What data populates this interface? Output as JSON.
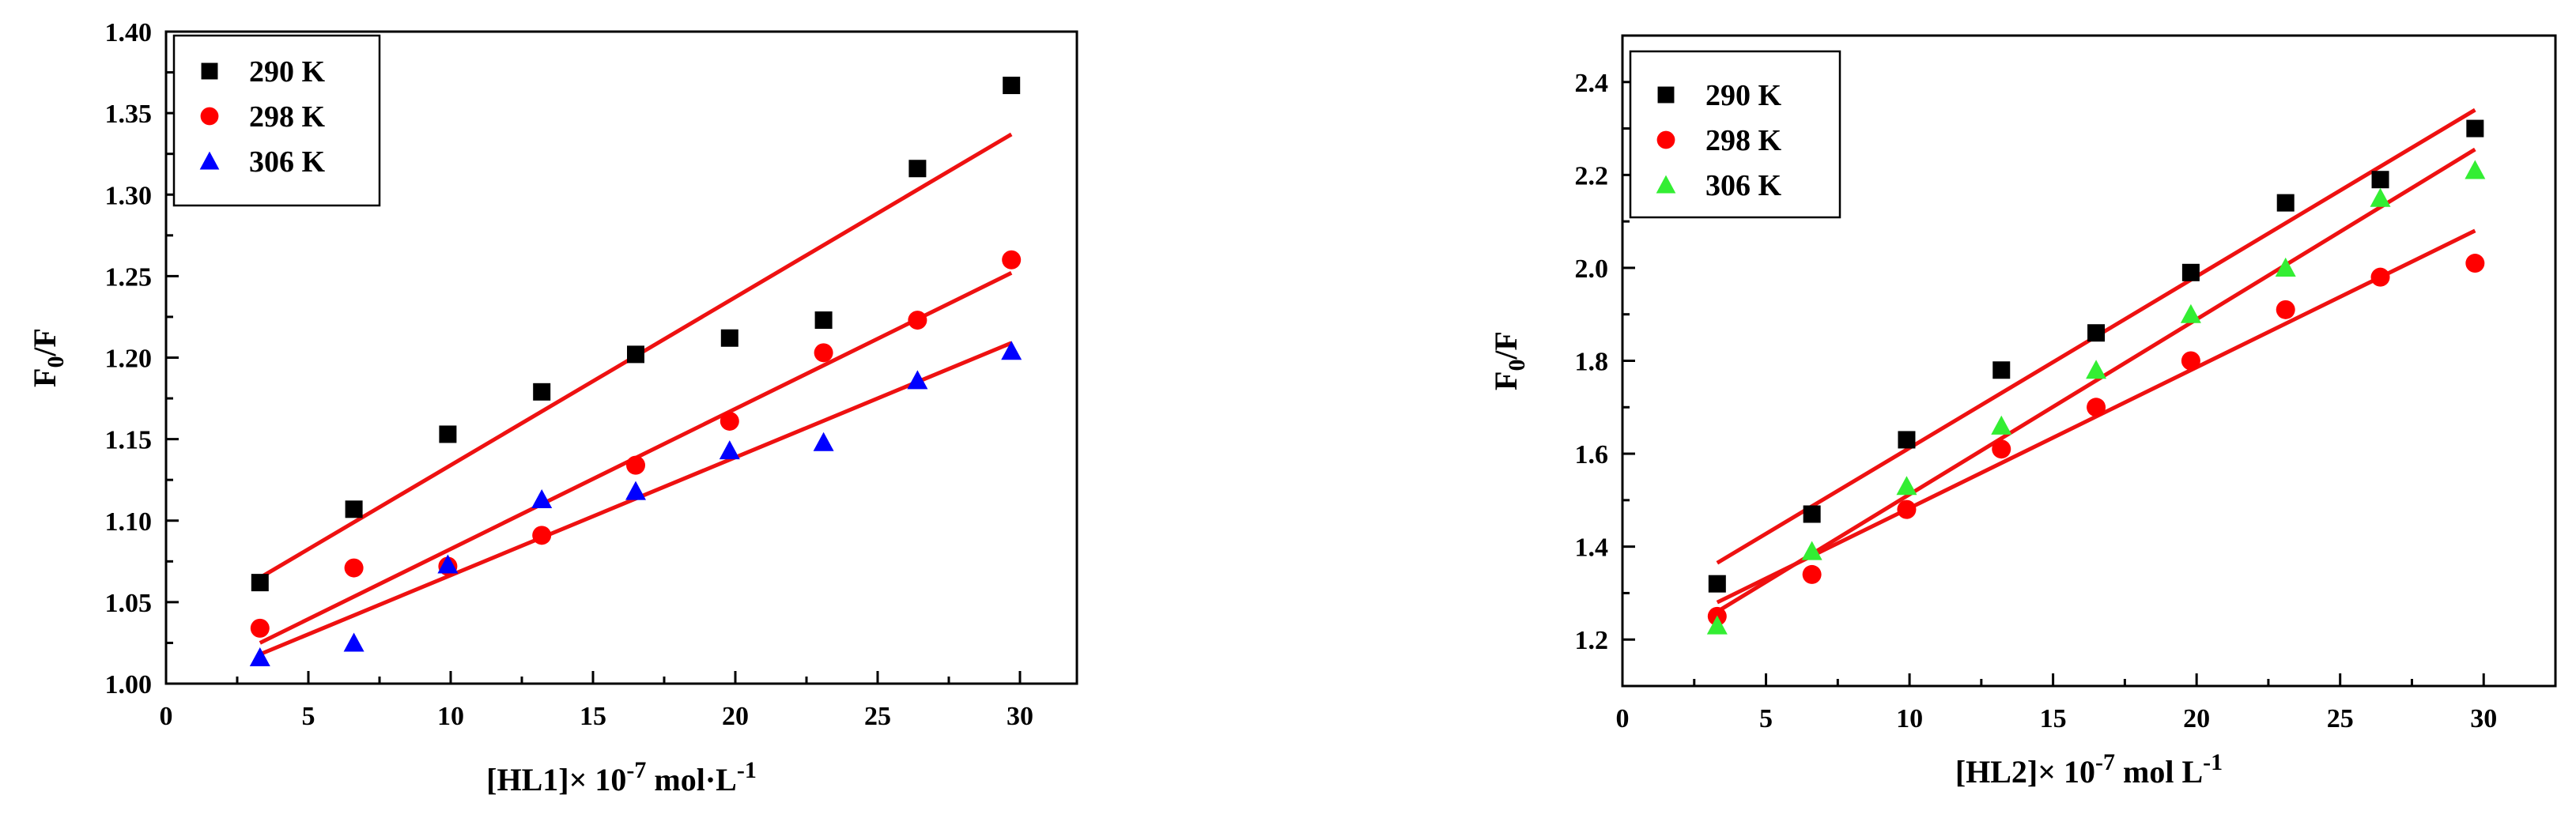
{
  "chart_data": [
    {
      "type": "scatter",
      "xlabel": "[HL1]× 10",
      "xlabel_sup": "-7",
      "xlabel_unit": " mol·L",
      "xlabel_unit_sup": "-1",
      "ylabel": "F",
      "ylabel_sub": "0",
      "ylabel_rest": "/F",
      "xlim": [
        0,
        32
      ],
      "ylim": [
        1.0,
        1.4
      ],
      "x_ticks": [
        0,
        5,
        10,
        15,
        20,
        25,
        30
      ],
      "x_tick_labels": [
        "0",
        "5",
        "10",
        "15",
        "20",
        "25",
        "30"
      ],
      "y_ticks": [
        1.0,
        1.05,
        1.1,
        1.15,
        1.2,
        1.25,
        1.3,
        1.35,
        1.4
      ],
      "y_tick_labels": [
        "1.00",
        "1.05",
        "1.10",
        "1.15",
        "1.20",
        "1.25",
        "1.30",
        "1.35",
        "1.40"
      ],
      "grid": false,
      "legend_position": "top-left",
      "fit_line_color": "#ee1111",
      "series": [
        {
          "name": "290 K",
          "marker": "square",
          "color": "#000000",
          "x": [
            3.3,
            6.6,
            9.9,
            13.2,
            16.5,
            19.8,
            23.1,
            26.4,
            29.7
          ],
          "y": [
            1.062,
            1.107,
            1.153,
            1.179,
            1.202,
            1.212,
            1.223,
            1.316,
            1.367
          ],
          "fit": [
            [
              3.3,
              1.065
            ],
            [
              29.7,
              1.337
            ]
          ]
        },
        {
          "name": "298 K",
          "marker": "circle",
          "color": "#ff0000",
          "x": [
            3.3,
            6.6,
            9.9,
            13.2,
            16.5,
            19.8,
            23.1,
            26.4,
            29.7
          ],
          "y": [
            1.034,
            1.071,
            1.072,
            1.091,
            1.134,
            1.161,
            1.203,
            1.223,
            1.26
          ],
          "fit": [
            [
              3.3,
              1.025
            ],
            [
              29.7,
              1.252
            ]
          ]
        },
        {
          "name": "306 K",
          "marker": "triangle",
          "color": "#0000ff",
          "x": [
            3.3,
            6.6,
            9.9,
            13.2,
            16.5,
            19.8,
            23.1,
            26.4,
            29.7
          ],
          "y": [
            1.016,
            1.025,
            1.073,
            1.113,
            1.118,
            1.143,
            1.148,
            1.186,
            1.204
          ],
          "fit": [
            [
              3.3,
              1.018
            ],
            [
              29.7,
              1.209
            ]
          ]
        }
      ]
    },
    {
      "type": "scatter",
      "xlabel": "[HL2]× 10",
      "xlabel_sup": "-7",
      "xlabel_unit": " mol L",
      "xlabel_unit_sup": "-1",
      "ylabel": "F",
      "ylabel_sub": "0",
      "ylabel_rest": "/F",
      "xlim": [
        0,
        32.5
      ],
      "ylim": [
        1.1,
        2.5
      ],
      "x_ticks": [
        0,
        5,
        10,
        15,
        20,
        25,
        30
      ],
      "x_tick_labels": [
        "0",
        "5",
        "10",
        "15",
        "20",
        "25",
        "30"
      ],
      "y_ticks": [
        1.2,
        1.4,
        1.6,
        1.8,
        2.0,
        2.2,
        2.4
      ],
      "y_tick_labels": [
        "1.2",
        "1.4",
        "1.6",
        "1.8",
        "2.0",
        "2.2",
        "2.4"
      ],
      "grid": false,
      "legend_position": "top-left",
      "fit_line_color": "#ee1111",
      "series": [
        {
          "name": "290 K",
          "marker": "square",
          "color": "#000000",
          "x": [
            3.3,
            6.6,
            9.9,
            13.2,
            16.5,
            19.8,
            23.1,
            26.4,
            29.7
          ],
          "y": [
            1.32,
            1.47,
            1.63,
            1.78,
            1.86,
            1.99,
            2.14,
            2.19,
            2.3
          ],
          "fit": [
            [
              3.3,
              1.365
            ],
            [
              29.7,
              2.34
            ]
          ]
        },
        {
          "name": "298 K",
          "marker": "circle",
          "color": "#ff0000",
          "x": [
            3.3,
            6.6,
            9.9,
            13.2,
            16.5,
            19.8,
            23.1,
            26.4,
            29.7
          ],
          "y": [
            1.25,
            1.34,
            1.48,
            1.61,
            1.7,
            1.8,
            1.91,
            1.98,
            2.01
          ],
          "fit": [
            [
              3.3,
              1.28
            ],
            [
              29.7,
              2.08
            ]
          ]
        },
        {
          "name": "306 K",
          "marker": "triangle",
          "color": "#33ee33",
          "x": [
            3.3,
            6.6,
            9.9,
            13.2,
            16.5,
            19.8,
            23.1,
            26.4,
            29.7
          ],
          "y": [
            1.23,
            1.39,
            1.53,
            1.66,
            1.78,
            1.9,
            2.0,
            2.15,
            2.21
          ],
          "fit": [
            [
              3.3,
              1.26
            ],
            [
              29.7,
              2.255
            ]
          ]
        }
      ]
    }
  ]
}
